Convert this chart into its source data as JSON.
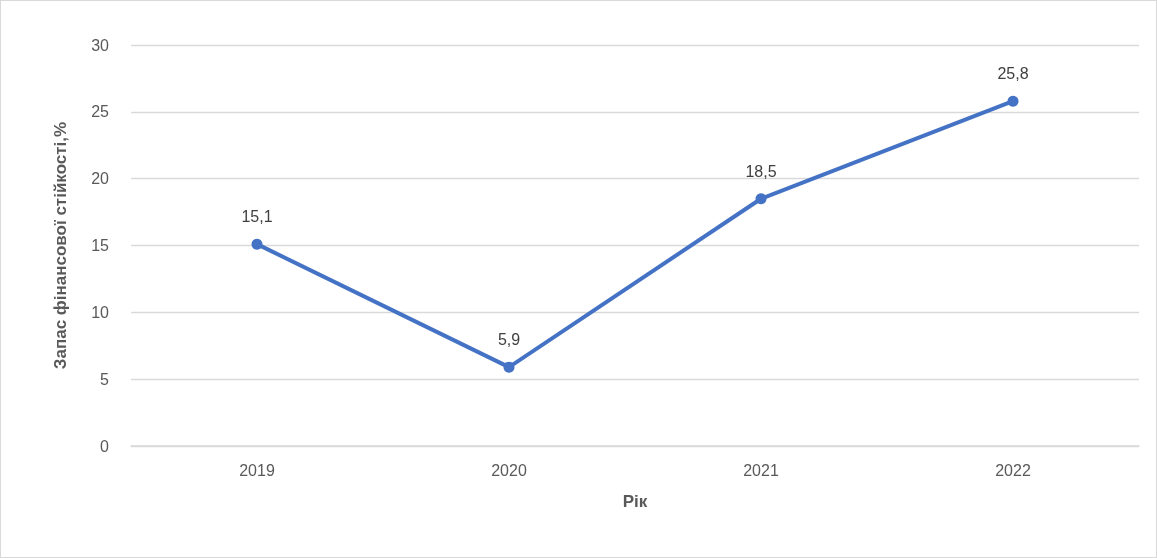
{
  "chart_data": {
    "type": "line",
    "xlabel": "Рік",
    "ylabel": "Запас фінансової стійкості,%",
    "categories": [
      "2019",
      "2020",
      "2021",
      "2022"
    ],
    "series": [
      {
        "color": "#4472c4",
        "values": [
          15.1,
          5.9,
          18.5,
          25.8
        ],
        "value_labels": [
          "15,1",
          "5,9",
          "18,5",
          "25,8"
        ]
      }
    ],
    "ylim": [
      0,
      30
    ],
    "yticks": [
      0,
      5,
      10,
      15,
      20,
      25,
      30
    ],
    "grid": "y",
    "marker": "circle",
    "line_style": "solid"
  }
}
